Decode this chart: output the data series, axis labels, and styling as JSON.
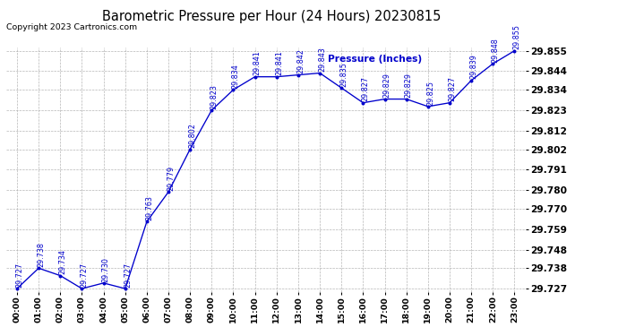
{
  "title": "Barometric Pressure per Hour (24 Hours) 20230815",
  "copyright": "Copyright 2023 Cartronics.com",
  "ylabel": "Pressure (Inches)",
  "hours": [
    "00:00",
    "01:00",
    "02:00",
    "03:00",
    "04:00",
    "05:00",
    "06:00",
    "07:00",
    "08:00",
    "09:00",
    "10:00",
    "11:00",
    "12:00",
    "13:00",
    "14:00",
    "15:00",
    "16:00",
    "17:00",
    "18:00",
    "19:00",
    "20:00",
    "21:00",
    "22:00",
    "23:00"
  ],
  "values": [
    29.727,
    29.738,
    29.734,
    29.727,
    29.73,
    29.727,
    29.763,
    29.779,
    29.802,
    29.823,
    29.834,
    29.841,
    29.841,
    29.842,
    29.843,
    29.835,
    29.827,
    29.829,
    29.829,
    29.825,
    29.827,
    29.839,
    29.848,
    29.855
  ],
  "line_color": "#0000cc",
  "marker_color": "#0000cc",
  "text_color": "#0000cc",
  "bg_color": "#ffffff",
  "grid_color": "#aaaaaa",
  "ylim_min": 29.727,
  "ylim_max": 29.855,
  "ytick_values": [
    29.727,
    29.738,
    29.748,
    29.759,
    29.77,
    29.78,
    29.791,
    29.802,
    29.812,
    29.823,
    29.834,
    29.844,
    29.855
  ],
  "title_fontsize": 11,
  "label_fontsize": 7,
  "copyright_fontsize": 7,
  "legend_fontsize": 8,
  "annotation_fontsize": 6
}
